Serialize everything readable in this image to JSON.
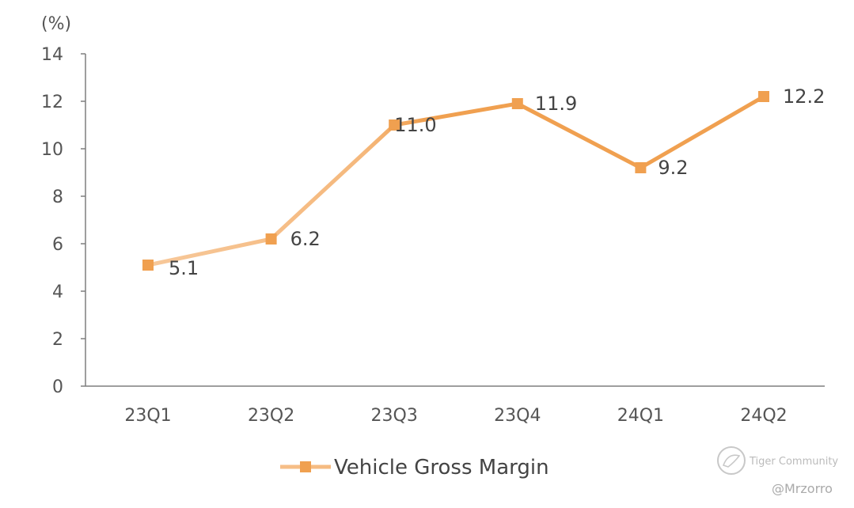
{
  "chart_data": {
    "type": "line",
    "title": "",
    "ylabel": "(%)",
    "xlabel": "",
    "ylim": [
      0,
      14
    ],
    "yticks": [
      0,
      2,
      4,
      6,
      8,
      10,
      12,
      14
    ],
    "categories": [
      "23Q1",
      "23Q2",
      "23Q3",
      "23Q4",
      "24Q1",
      "24Q2"
    ],
    "series": [
      {
        "name": "Vehicle Gross Margin",
        "values": [
          5.1,
          6.2,
          11.0,
          11.9,
          9.2,
          12.2
        ],
        "labels": [
          "5.1",
          "6.2",
          "11.0",
          "11.9",
          "9.2",
          "12.2"
        ],
        "color": "#f0a050"
      }
    ],
    "grid": false,
    "legend": "bottom-center"
  },
  "watermark": {
    "brand": "Tiger Community",
    "handle": "@Mrzorro"
  },
  "colors": {
    "series_dark": "#f0a050",
    "series_light": "#f7c89a",
    "marker": "#f0a050",
    "axis": "#7f7f7f"
  }
}
